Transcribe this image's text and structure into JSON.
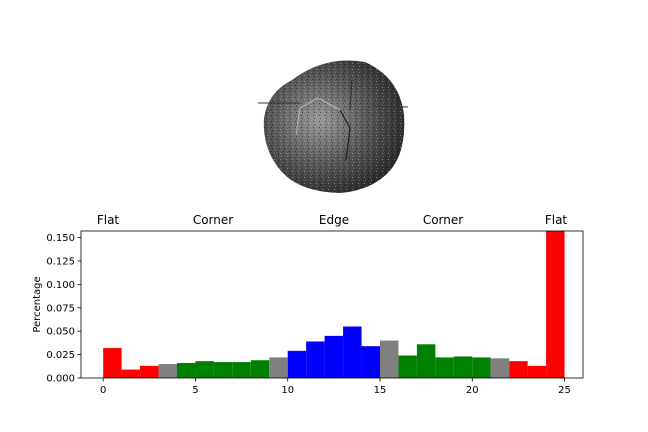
{
  "image": {
    "icon": "textured-sphere-icon",
    "background": "#ffffff"
  },
  "chart_data": {
    "type": "bar",
    "title": "",
    "xlabel": "",
    "ylabel": "Percentage",
    "xlim": [
      -1.2,
      26
    ],
    "ylim": [
      0,
      0.157
    ],
    "grid": false,
    "legend": "none",
    "x_ticks": [
      "0",
      "5",
      "10",
      "15",
      "20",
      "25"
    ],
    "y_ticks": [
      "0.000",
      "0.025",
      "0.050",
      "0.075",
      "0.100",
      "0.125",
      "0.150"
    ],
    "region_labels": [
      "Flat",
      "Corner",
      "Edge",
      "Corner",
      "Flat"
    ],
    "colors": {
      "flat": "#ff0000",
      "corner": "#008000",
      "edge": "#0000ff",
      "transition": "#808080"
    },
    "bars": [
      {
        "x": 0,
        "value": 0.032,
        "class": "flat"
      },
      {
        "x": 1,
        "value": 0.009,
        "class": "flat"
      },
      {
        "x": 2,
        "value": 0.013,
        "class": "flat"
      },
      {
        "x": 3,
        "value": 0.015,
        "class": "transition"
      },
      {
        "x": 4,
        "value": 0.016,
        "class": "corner"
      },
      {
        "x": 5,
        "value": 0.018,
        "class": "corner"
      },
      {
        "x": 6,
        "value": 0.017,
        "class": "corner"
      },
      {
        "x": 7,
        "value": 0.017,
        "class": "corner"
      },
      {
        "x": 8,
        "value": 0.019,
        "class": "corner"
      },
      {
        "x": 9,
        "value": 0.022,
        "class": "transition"
      },
      {
        "x": 10,
        "value": 0.029,
        "class": "edge"
      },
      {
        "x": 11,
        "value": 0.039,
        "class": "edge"
      },
      {
        "x": 12,
        "value": 0.045,
        "class": "edge"
      },
      {
        "x": 13,
        "value": 0.055,
        "class": "edge"
      },
      {
        "x": 14,
        "value": 0.034,
        "class": "edge"
      },
      {
        "x": 15,
        "value": 0.04,
        "class": "transition"
      },
      {
        "x": 16,
        "value": 0.024,
        "class": "corner"
      },
      {
        "x": 17,
        "value": 0.036,
        "class": "corner"
      },
      {
        "x": 18,
        "value": 0.022,
        "class": "corner"
      },
      {
        "x": 19,
        "value": 0.023,
        "class": "corner"
      },
      {
        "x": 20,
        "value": 0.022,
        "class": "corner"
      },
      {
        "x": 21,
        "value": 0.021,
        "class": "transition"
      },
      {
        "x": 22,
        "value": 0.018,
        "class": "flat"
      },
      {
        "x": 23,
        "value": 0.013,
        "class": "flat"
      },
      {
        "x": 24,
        "value": 0.157,
        "class": "flat"
      }
    ]
  }
}
